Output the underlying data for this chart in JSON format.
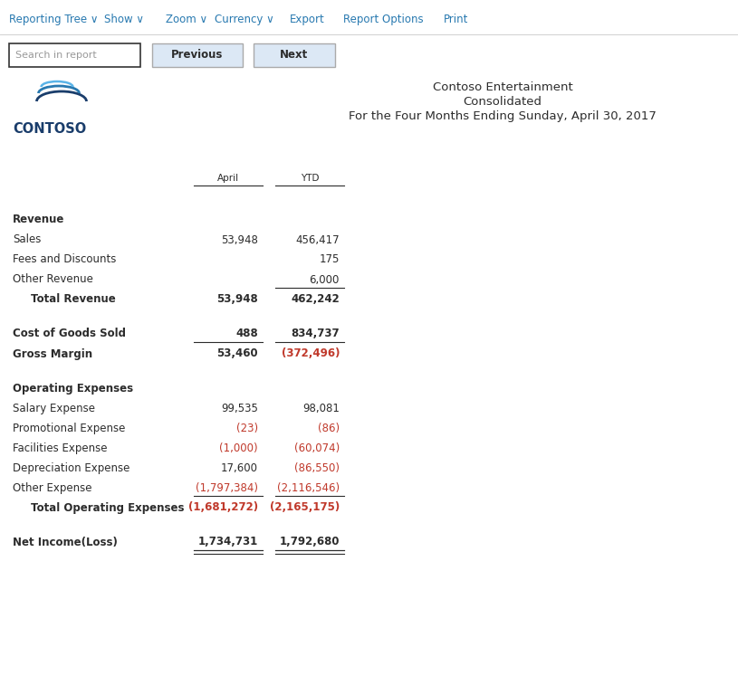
{
  "title_line1": "Contoso Entertainment",
  "title_line2": "Consolidated",
  "title_line3": "For the Four Months Ending Sunday, April 30, 2017",
  "nav_items": [
    "Reporting Tree",
    "Show",
    "Zoom",
    "Currency",
    "Export",
    "Report Options",
    "Print"
  ],
  "nav_color": "#2879b0",
  "nav_dropdown": [
    "Reporting Tree",
    "Show",
    "Zoom",
    "Currency"
  ],
  "background_color": "#ffffff",
  "rows": [
    {
      "label": "Revenue",
      "april": "",
      "ytd": "",
      "style": "section_header",
      "april_color": "#2c2c2c",
      "ytd_color": "#2c2c2c",
      "ul_a": false,
      "ul_y": false,
      "indent": 0
    },
    {
      "label": "Sales",
      "april": "53,948",
      "ytd": "456,417",
      "style": "normal",
      "april_color": "#2c2c2c",
      "ytd_color": "#2c2c2c",
      "ul_a": false,
      "ul_y": false,
      "indent": 0
    },
    {
      "label": "Fees and Discounts",
      "april": "",
      "ytd": "175",
      "style": "normal",
      "april_color": "#2c2c2c",
      "ytd_color": "#2c2c2c",
      "ul_a": false,
      "ul_y": false,
      "indent": 0
    },
    {
      "label": "Other Revenue",
      "april": "",
      "ytd": "6,000",
      "style": "normal",
      "april_color": "#2c2c2c",
      "ytd_color": "#2c2c2c",
      "ul_a": true,
      "ul_y": true,
      "indent": 0
    },
    {
      "label": "Total Revenue",
      "april": "53,948",
      "ytd": "462,242",
      "style": "total",
      "april_color": "#2c2c2c",
      "ytd_color": "#2c2c2c",
      "ul_a": false,
      "ul_y": false,
      "indent": 1
    },
    {
      "label": "",
      "april": "",
      "ytd": "",
      "style": "spacer",
      "april_color": "#2c2c2c",
      "ytd_color": "#2c2c2c",
      "ul_a": false,
      "ul_y": false,
      "indent": 0
    },
    {
      "label": "",
      "april": "",
      "ytd": "",
      "style": "spacer",
      "april_color": "#2c2c2c",
      "ytd_color": "#2c2c2c",
      "ul_a": false,
      "ul_y": false,
      "indent": 0
    },
    {
      "label": "Cost of Goods Sold",
      "april": "488",
      "ytd": "834,737",
      "style": "bold",
      "april_color": "#2c2c2c",
      "ytd_color": "#2c2c2c",
      "ul_a": true,
      "ul_y": true,
      "indent": 0
    },
    {
      "label": "Gross Margin",
      "april": "53,460",
      "ytd": "(372,496)",
      "style": "bold",
      "april_color": "#2c2c2c",
      "ytd_color": "#c0392b",
      "ul_a": false,
      "ul_y": false,
      "indent": 0
    },
    {
      "label": "",
      "april": "",
      "ytd": "",
      "style": "spacer",
      "april_color": "#2c2c2c",
      "ytd_color": "#2c2c2c",
      "ul_a": false,
      "ul_y": false,
      "indent": 0
    },
    {
      "label": "",
      "april": "",
      "ytd": "",
      "style": "spacer",
      "april_color": "#2c2c2c",
      "ytd_color": "#2c2c2c",
      "ul_a": false,
      "ul_y": false,
      "indent": 0
    },
    {
      "label": "Operating Expenses",
      "april": "",
      "ytd": "",
      "style": "section_header",
      "april_color": "#2c2c2c",
      "ytd_color": "#2c2c2c",
      "ul_a": false,
      "ul_y": false,
      "indent": 0
    },
    {
      "label": "Salary Expense",
      "april": "99,535",
      "ytd": "98,081",
      "style": "normal",
      "april_color": "#2c2c2c",
      "ytd_color": "#2c2c2c",
      "ul_a": false,
      "ul_y": false,
      "indent": 0
    },
    {
      "label": "Promotional Expense",
      "april": "(23)",
      "ytd": "(86)",
      "style": "normal",
      "april_color": "#c0392b",
      "ytd_color": "#c0392b",
      "ul_a": false,
      "ul_y": false,
      "indent": 0
    },
    {
      "label": "Facilities Expense",
      "april": "(1,000)",
      "ytd": "(60,074)",
      "style": "normal",
      "april_color": "#c0392b",
      "ytd_color": "#c0392b",
      "ul_a": false,
      "ul_y": false,
      "indent": 0
    },
    {
      "label": "Depreciation Expense",
      "april": "17,600",
      "ytd": "(86,550)",
      "style": "normal",
      "april_color": "#2c2c2c",
      "ytd_color": "#c0392b",
      "ul_a": false,
      "ul_y": false,
      "indent": 0
    },
    {
      "label": "Other Expense",
      "april": "(1,797,384)",
      "ytd": "(2,116,546)",
      "style": "normal",
      "april_color": "#c0392b",
      "ytd_color": "#c0392b",
      "ul_a": true,
      "ul_y": true,
      "indent": 0
    },
    {
      "label": "Total Operating Expenses",
      "april": "(1,681,272)",
      "ytd": "(2,165,175)",
      "style": "total",
      "april_color": "#c0392b",
      "ytd_color": "#c0392b",
      "ul_a": false,
      "ul_y": false,
      "indent": 1
    },
    {
      "label": "",
      "april": "",
      "ytd": "",
      "style": "spacer",
      "april_color": "#2c2c2c",
      "ytd_color": "#2c2c2c",
      "ul_a": false,
      "ul_y": false,
      "indent": 0
    },
    {
      "label": "",
      "april": "",
      "ytd": "",
      "style": "spacer",
      "april_color": "#2c2c2c",
      "ytd_color": "#2c2c2c",
      "ul_a": false,
      "ul_y": false,
      "indent": 0
    },
    {
      "label": "Net Income(Loss)",
      "april": "1,734,731",
      "ytd": "1,792,680",
      "style": "net_income",
      "april_color": "#2c2c2c",
      "ytd_color": "#2c2c2c",
      "ul_a": true,
      "ul_y": true,
      "indent": 0
    }
  ]
}
